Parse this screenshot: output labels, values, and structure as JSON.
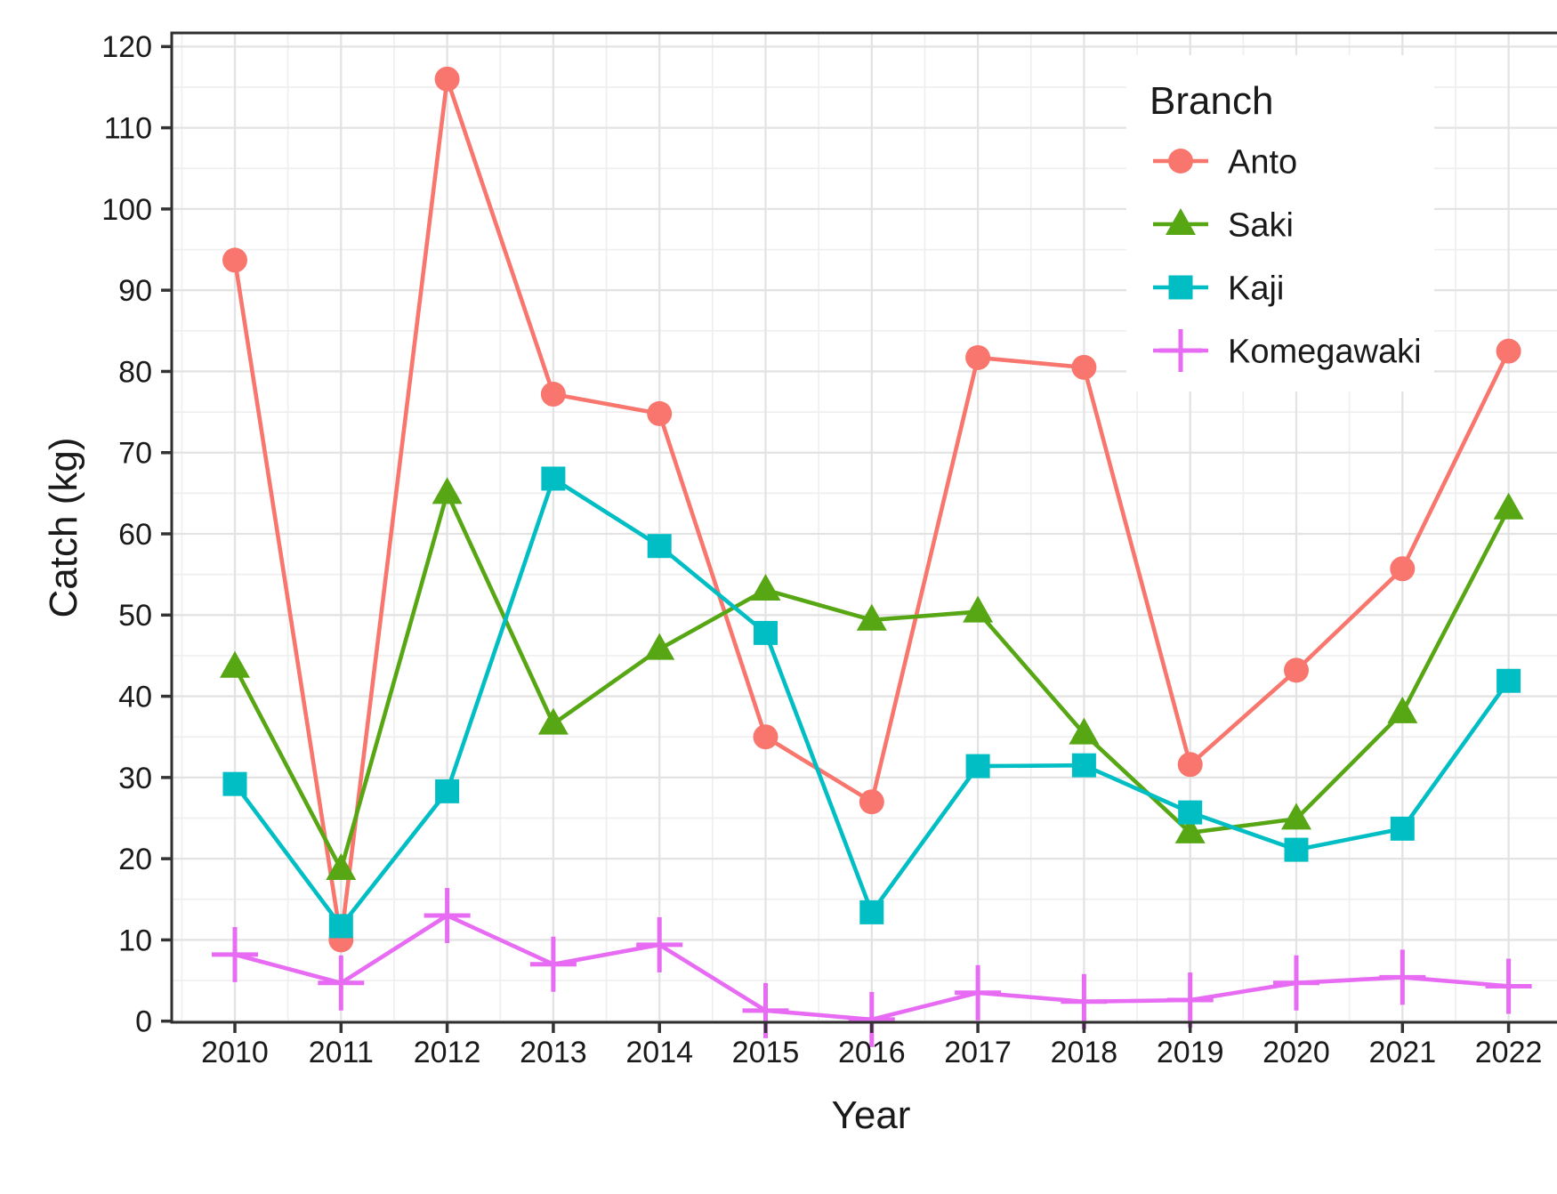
{
  "chart_data": {
    "type": "line",
    "title": "",
    "xlabel": "Year",
    "ylabel": "Catch (kg)",
    "grid": true,
    "legend": {
      "title": "Branch",
      "position": "inside-top-right",
      "entries": [
        "Anto",
        "Saki",
        "Kaji",
        "Komegawaki"
      ]
    },
    "x": [
      2010,
      2011,
      2012,
      2013,
      2014,
      2015,
      2016,
      2017,
      2018,
      2019,
      2020,
      2021,
      2022
    ],
    "x_tick_labels": [
      "2010",
      "2011",
      "2012",
      "2013",
      "2014",
      "2015",
      "2016",
      "2017",
      "2018",
      "2019",
      "2020",
      "2021",
      "2022"
    ],
    "y_tick_labels": [
      "0",
      "10",
      "20",
      "30",
      "40",
      "50",
      "60",
      "70",
      "80",
      "90",
      "100",
      "110",
      "120"
    ],
    "ylim": [
      0,
      120
    ],
    "y_major_step": 10,
    "y_minor_step": 5,
    "series": [
      {
        "name": "Anto",
        "color": "#F8766D",
        "marker": "circle",
        "values": [
          93.7,
          10.0,
          116.0,
          77.2,
          74.8,
          35.0,
          27.0,
          81.7,
          80.5,
          31.6,
          43.2,
          55.7,
          82.5
        ]
      },
      {
        "name": "Saki",
        "color": "#57A613",
        "marker": "triangle",
        "values": [
          43.6,
          18.7,
          65.0,
          36.6,
          45.8,
          53.1,
          49.4,
          50.4,
          35.4,
          23.2,
          24.9,
          38.0,
          63.1
        ]
      },
      {
        "name": "Kaji",
        "color": "#00BEC4",
        "marker": "square",
        "values": [
          29.2,
          11.7,
          28.3,
          66.8,
          58.5,
          47.8,
          13.4,
          31.4,
          31.5,
          25.7,
          21.1,
          23.7,
          41.9
        ]
      },
      {
        "name": "Komegawaki",
        "color": "#E76BF3",
        "marker": "plus",
        "values": [
          8.2,
          4.7,
          13.0,
          7.0,
          9.4,
          1.3,
          0.2,
          3.5,
          2.4,
          2.6,
          4.7,
          5.4,
          4.3
        ]
      }
    ],
    "panel": {
      "border_color": "#2f2f2f",
      "grid_major_color": "#e3e3e3",
      "grid_minor_color": "#efefef",
      "tick_color": "#333333"
    }
  }
}
